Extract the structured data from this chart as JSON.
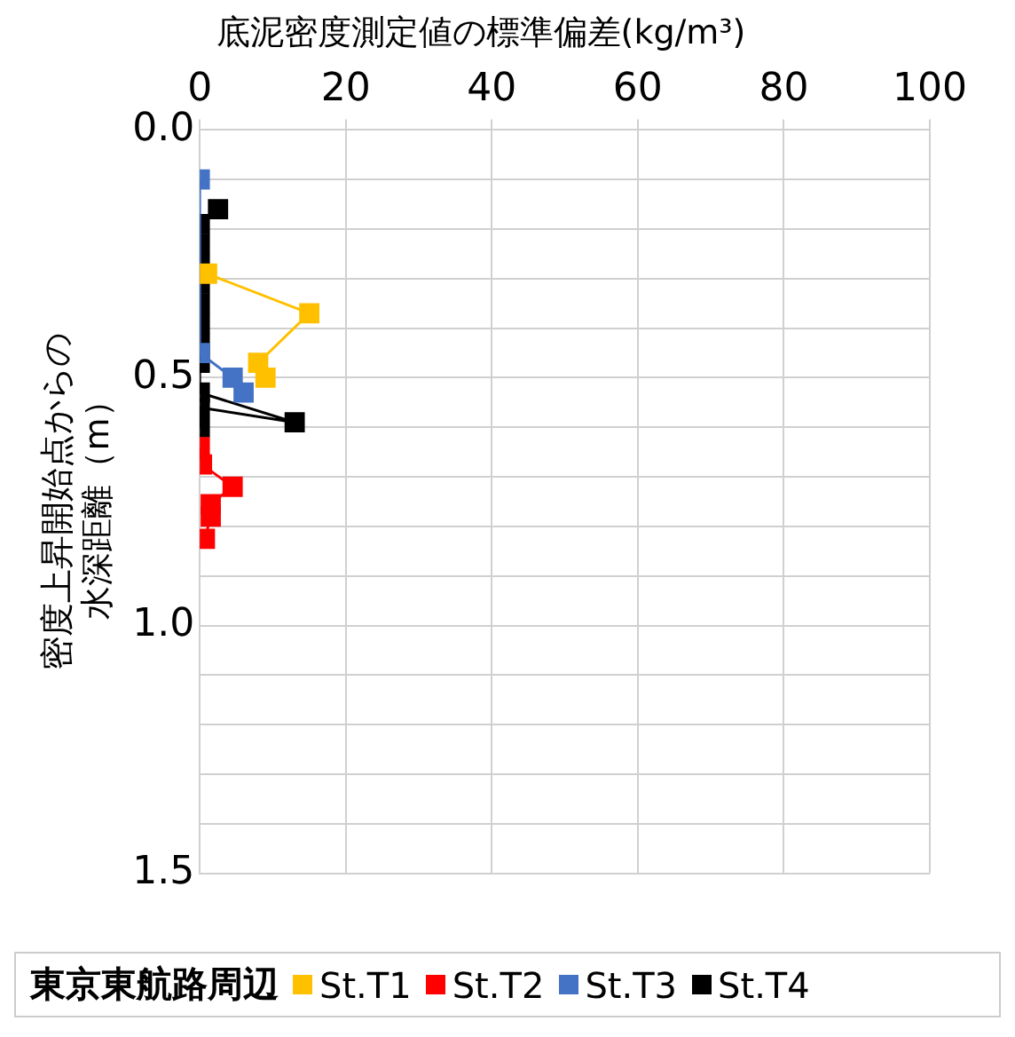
{
  "chart_data": {
    "type": "line",
    "title": "底泥密度測定値の標準偏差(kg/m³)",
    "ylabel": "密度上昇開始点からの水深距離（m）",
    "legend_title": "東京東航路周辺",
    "xlim": [
      0,
      100
    ],
    "xticks": [
      0,
      20,
      40,
      60,
      80,
      100
    ],
    "ylim": [
      1.5,
      0
    ],
    "yticks": [
      {
        "value": 0,
        "label": "0.0"
      },
      {
        "value": 0.1,
        "label": null
      },
      {
        "value": 0.2,
        "label": null
      },
      {
        "value": 0.3,
        "label": null
      },
      {
        "value": 0.4,
        "label": null
      },
      {
        "value": 0.5,
        "label": "0.5"
      },
      {
        "value": 0.6,
        "label": null
      },
      {
        "value": 0.7,
        "label": null
      },
      {
        "value": 0.8,
        "label": null
      },
      {
        "value": 0.9,
        "label": null
      },
      {
        "value": 1,
        "label": "1.0"
      },
      {
        "value": 1.1,
        "label": null
      },
      {
        "value": 1.2,
        "label": null
      },
      {
        "value": 1.3,
        "label": null
      },
      {
        "value": 1.4,
        "label": null
      },
      {
        "value": 1.5,
        "label": "1.5"
      }
    ],
    "grid": true,
    "legend": "bottom",
    "marker": "square",
    "line_style": "solid",
    "series": [
      {
        "name": "St.T1",
        "color": "#ffc000",
        "x": [
          1,
          15,
          8,
          9
        ],
        "values": [
          0.29,
          0.37,
          0.47,
          0.5
        ]
      },
      {
        "name": "St.T2",
        "color": "#ff0000",
        "x": [
          0,
          0.3,
          4.5,
          1.5,
          1.5,
          0.7
        ],
        "values": [
          0.64,
          0.675,
          0.72,
          0.755,
          0.78,
          0.825
        ]
      },
      {
        "name": "St.T3",
        "color": "#4472c4",
        "x": [
          0,
          0,
          4.5,
          6
        ],
        "values": [
          0.1,
          0.45,
          0.5,
          0.53
        ]
      },
      {
        "name": "St.T4",
        "color": "#000000",
        "x": [
          2.5,
          0,
          0,
          0,
          0,
          0,
          0,
          0,
          0,
          0,
          13,
          0,
          0
        ],
        "values": [
          0.16,
          0.19,
          0.23,
          0.27,
          0.31,
          0.35,
          0.39,
          0.43,
          0.47,
          0.53,
          0.59,
          0.56,
          0.6
        ]
      }
    ]
  }
}
